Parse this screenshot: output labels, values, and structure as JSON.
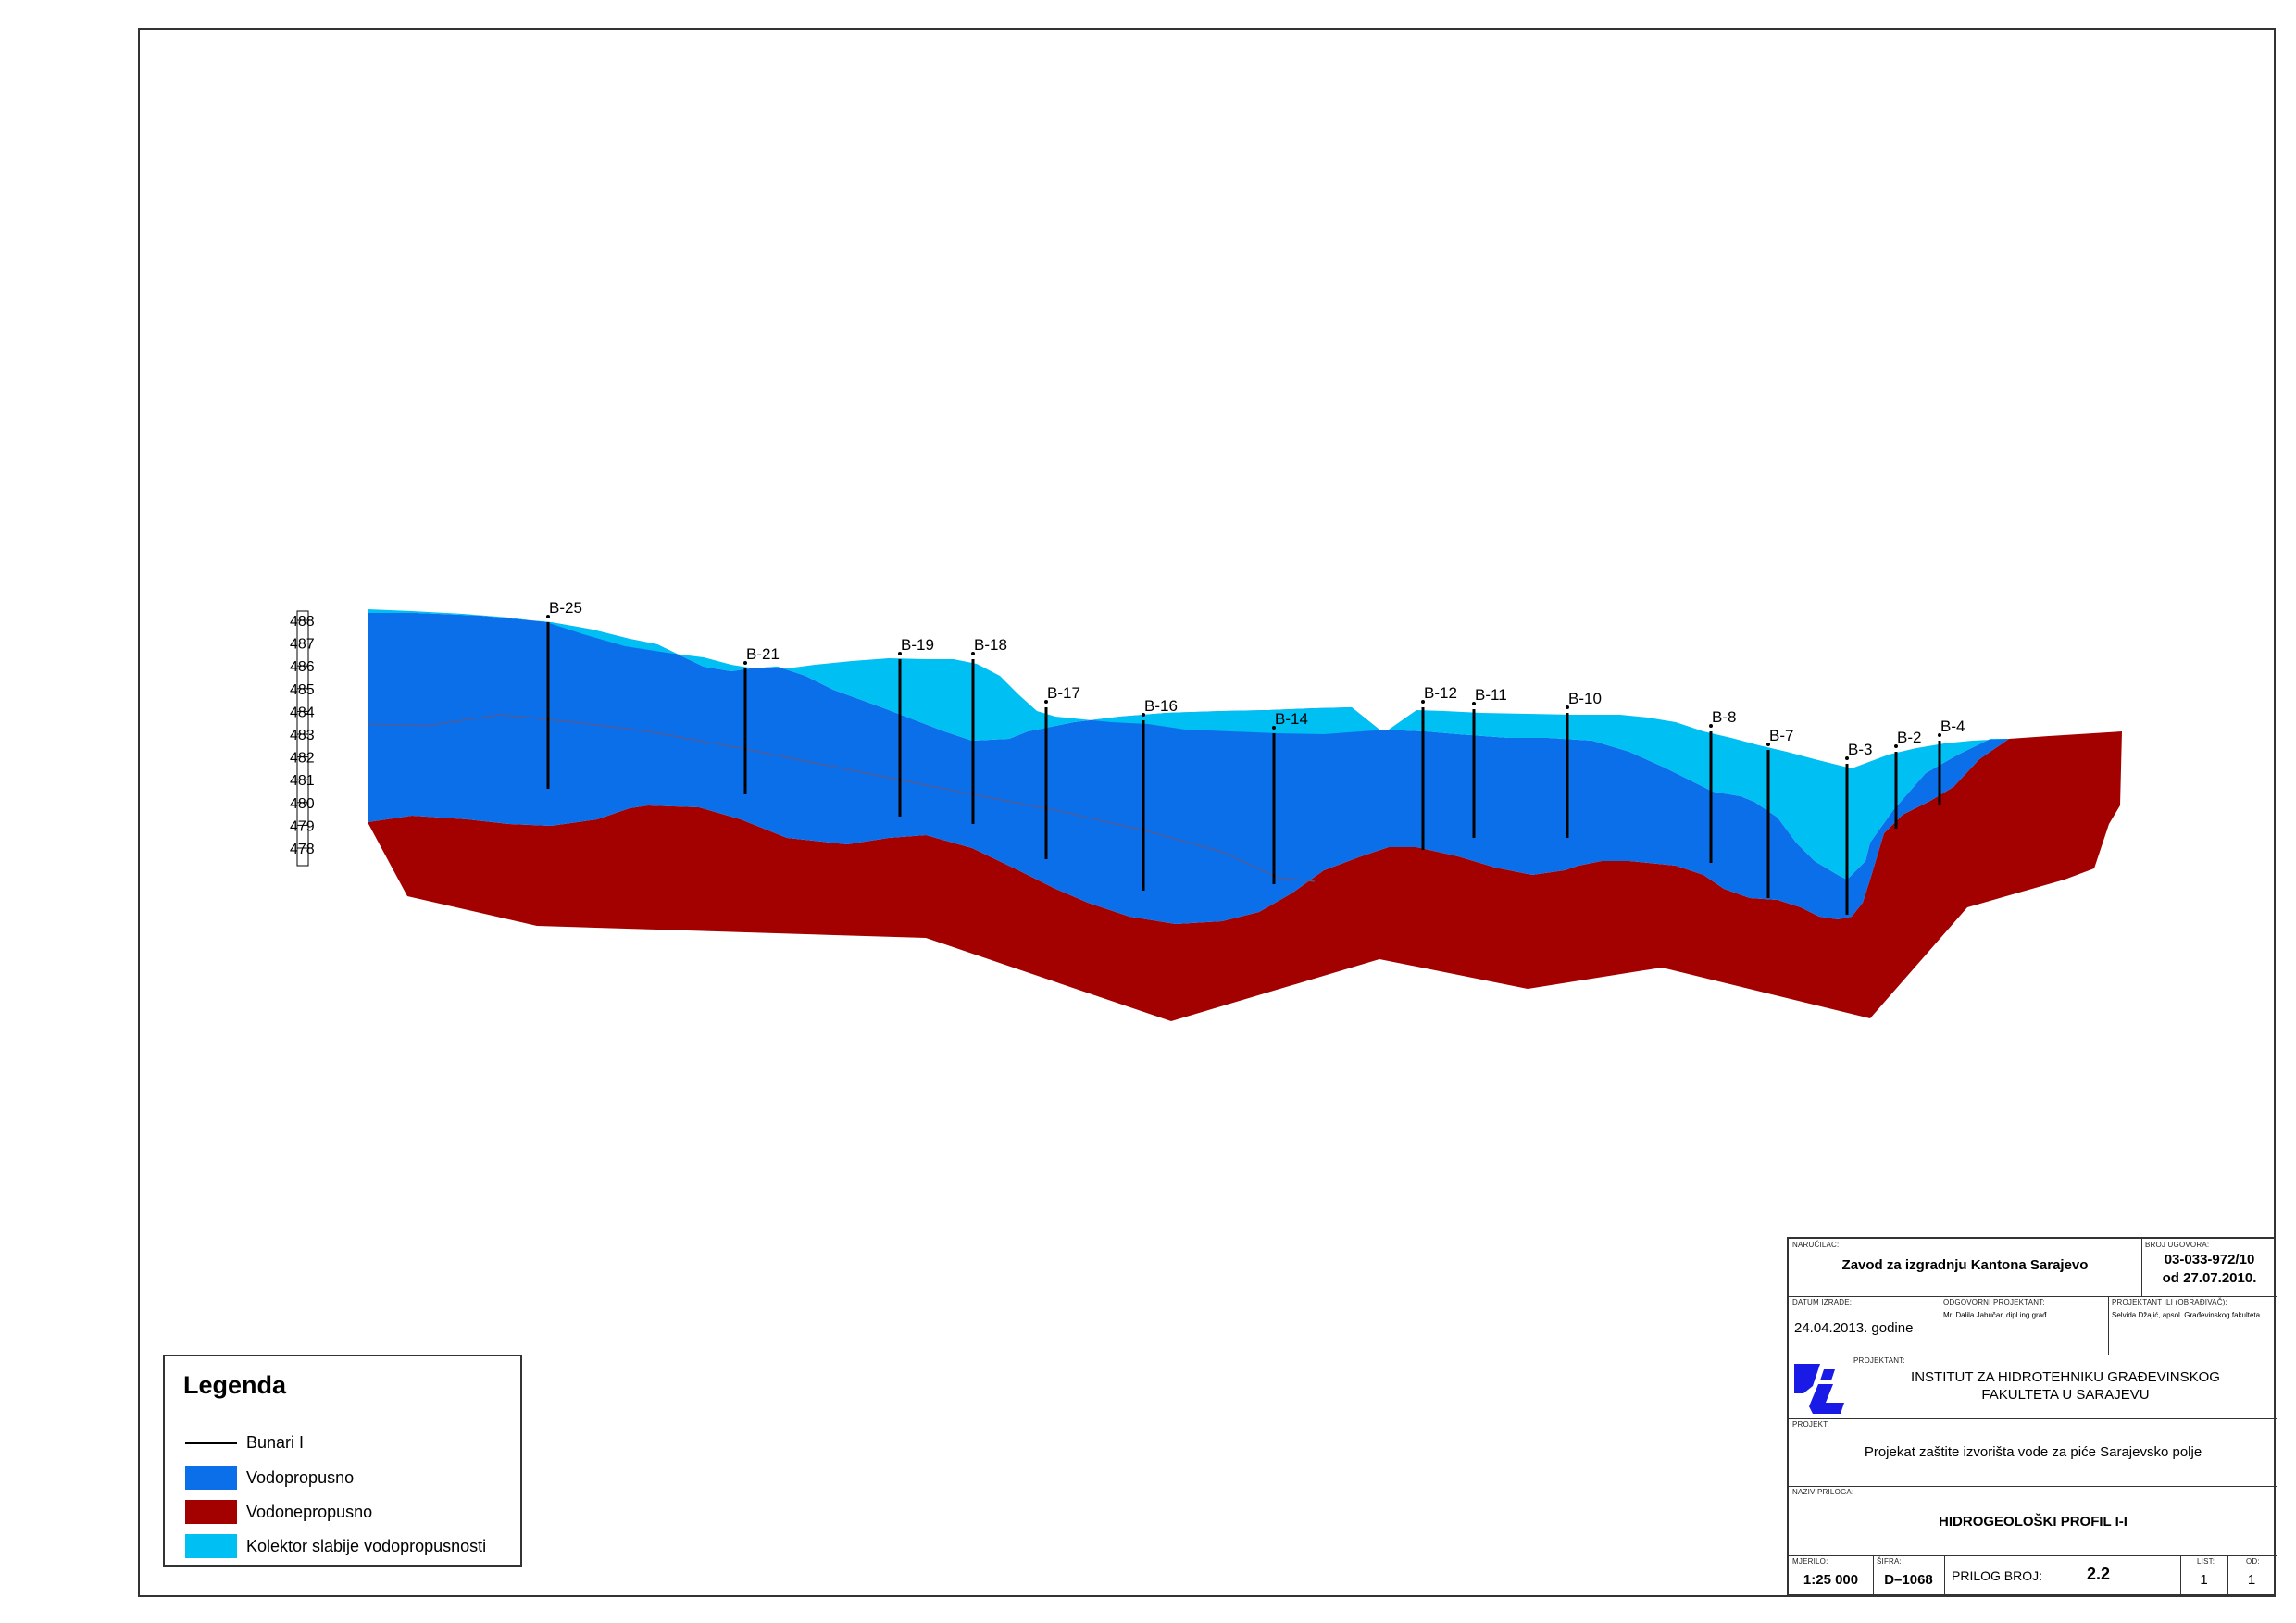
{
  "chart_data": {
    "type": "hydrogeological-profile",
    "title": "HIDROGEOLOŠKI PROFIL I-I",
    "y_axis_ticks": [
      488,
      487,
      486,
      485,
      484,
      483,
      482,
      481,
      480,
      479,
      478
    ],
    "wells": [
      {
        "label": "B-25",
        "order": 1
      },
      {
        "label": "B-21",
        "order": 2
      },
      {
        "label": "B-19",
        "order": 3
      },
      {
        "label": "B-18",
        "order": 4
      },
      {
        "label": "B-17",
        "order": 5
      },
      {
        "label": "B-16",
        "order": 6
      },
      {
        "label": "B-14",
        "order": 7
      },
      {
        "label": "B-12",
        "order": 8
      },
      {
        "label": "B-11",
        "order": 9
      },
      {
        "label": "B-10",
        "order": 10
      },
      {
        "label": "B-8",
        "order": 11
      },
      {
        "label": "B-7",
        "order": 12
      },
      {
        "label": "B-3",
        "order": 13
      },
      {
        "label": "B-2",
        "order": 14
      },
      {
        "label": "B-4",
        "order": 15
      }
    ],
    "layers": [
      {
        "name": "Kolektor slabije vodopropusnosti",
        "color": "#00BFF3"
      },
      {
        "name": "Vodopropusno",
        "color": "#0C6FEA"
      },
      {
        "name": "Vodonepropusno",
        "color": "#A30000"
      }
    ]
  },
  "legend": {
    "title": "Legenda",
    "items": [
      {
        "label": "Bunari I",
        "kind": "line",
        "color": "#000000"
      },
      {
        "label": "Vodopropusno",
        "kind": "fill",
        "color": "#0C6FEA"
      },
      {
        "label": "Vodonepropusno",
        "kind": "fill",
        "color": "#A30000"
      },
      {
        "label": "Kolektor slabije vodopropusnosti",
        "kind": "fill",
        "color": "#00BFF3"
      }
    ]
  },
  "title_block": {
    "client_caption": "NARUČILAC:",
    "client": "Zavod za izgradnju Kantona Sarajevo",
    "contract_caption": "BROJ UGOVORA:",
    "contract_no": "03-033-972/10",
    "contract_date": "od 27.07.2010.",
    "date_caption": "DATUM IZRADE:",
    "date": "24.04.2013. godine",
    "responsible_caption": "ODGOVORNI PROJEKTANT:",
    "responsible": "Mr. Dalila Jabučar, dipl.ing.građ.",
    "designer_caption": "PROJEKTANT ILI (OBRAĐIVAČ):",
    "designer": "Selvida Džajić, apsol. Građevinskog fakulteta",
    "designer_org_caption": "PROJEKTANT:",
    "institute_line1": "INSTITUT ZA HIDROTEHNIKU GRAĐEVINSKOG",
    "institute_line2": "FAKULTETA U SARAJEVU",
    "project_caption": "PROJEKT:",
    "project": "Projekat zaštite izvorišta vode za piće Sarajevsko polje",
    "attachment_caption": "NAZIV PRILOGA:",
    "attachment": "HIDROGEOLOŠKI PROFIL I-I",
    "scale_caption": "MJERILO:",
    "scale": "1:25 000",
    "code_caption": "ŠIFRA:",
    "code": "D–1068",
    "prilog_label": "PRILOG BROJ:",
    "prilog_no": "2.2",
    "sheet_caption": "LIST:",
    "sheet": "1",
    "of_caption": "OD:",
    "of": "1"
  },
  "colors": {
    "light_blue": "#00BFF3",
    "blue": "#0C6FEA",
    "red": "#A30000",
    "logo_blue": "#1A1AE6"
  }
}
